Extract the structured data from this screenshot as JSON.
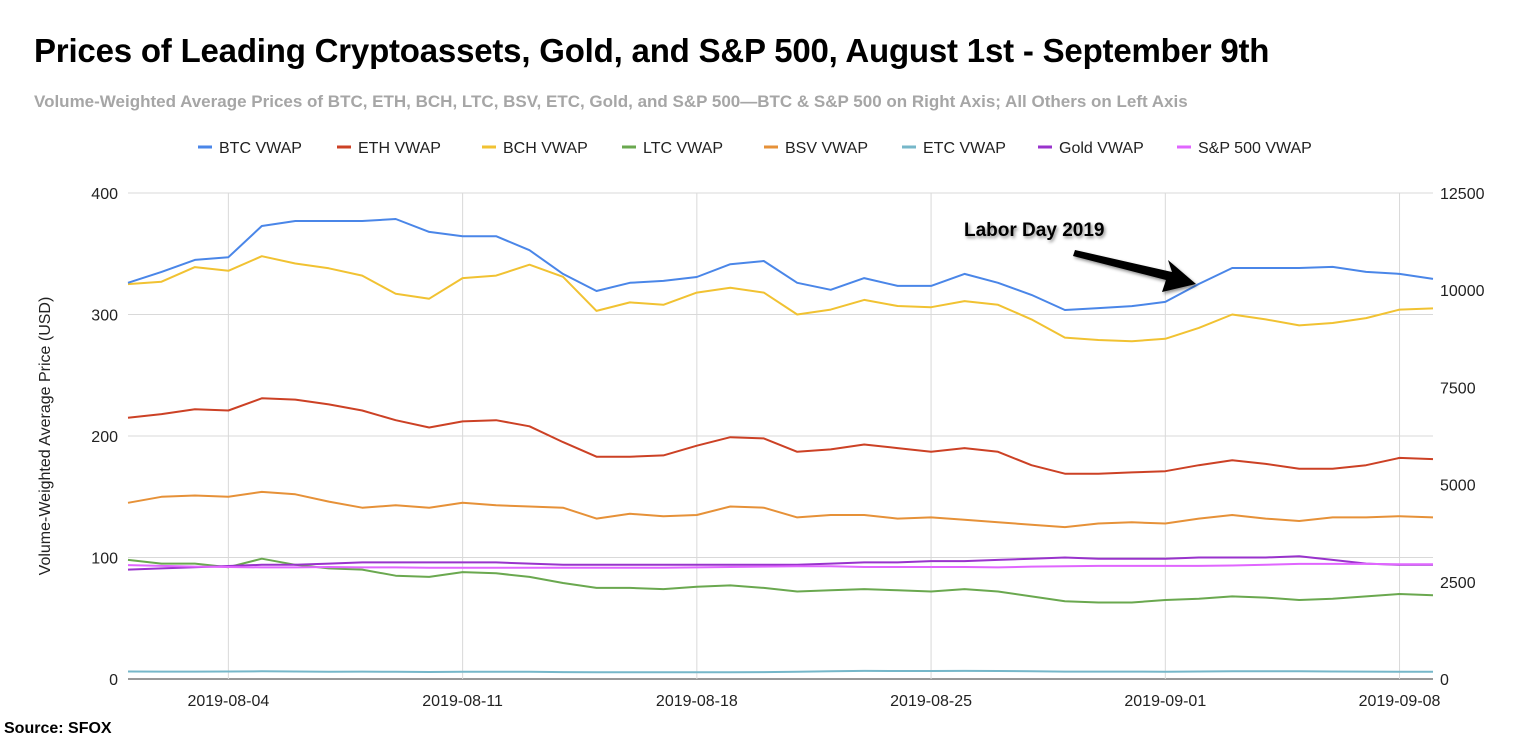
{
  "chart_data": {
    "type": "line",
    "title": "Prices of Leading Cryptoassets, Gold, and S&P 500, August 1st - September 9th",
    "subtitle": "Volume-Weighted Average Prices of BTC, ETH, BCH, LTC, BSV, ETC, Gold, and S&P 500—BTC & S&P 500 on Right Axis; All Others on Left Axis",
    "ylabel": "Volume-Weighted Average Price (USD)",
    "xlabel": "",
    "source": "Source: SFOX",
    "x_start": "2019-08-01",
    "x_end": "2019-09-09",
    "x_ticks": [
      "2019-08-04",
      "2019-08-11",
      "2019-08-18",
      "2019-08-25",
      "2019-09-01",
      "2019-09-08"
    ],
    "ylim_left": [
      0,
      400
    ],
    "y_ticks_left": [
      "0",
      "100",
      "200",
      "300",
      "400"
    ],
    "ylim_right": [
      0,
      12500
    ],
    "y_ticks_right": [
      "0",
      "2500",
      "5000",
      "7500",
      "10000",
      "12500"
    ],
    "grid": true,
    "legend_position": "top",
    "annotation": {
      "text": "Labor Day 2019",
      "date": "2019-09-02"
    },
    "series": [
      {
        "name": "BTC VWAP",
        "axis": "right",
        "color": "#4a86e8",
        "values": [
          10190,
          10470,
          10780,
          10850,
          11650,
          11780,
          11780,
          11780,
          11830,
          11500,
          11390,
          11390,
          11030,
          10420,
          9980,
          10190,
          10240,
          10340,
          10670,
          10750,
          10190,
          10010,
          10310,
          10110,
          10110,
          10420,
          10190,
          9880,
          9490,
          9540,
          9590,
          9700,
          10160,
          10570,
          10570,
          10570,
          10600,
          10470,
          10420,
          10290
        ]
      },
      {
        "name": "ETH VWAP",
        "axis": "left",
        "color": "#cc4125",
        "values": [
          215,
          218,
          222,
          221,
          231,
          230,
          226,
          221,
          213,
          207,
          212,
          213,
          208,
          195,
          183,
          183,
          184,
          192,
          199,
          198,
          187,
          189,
          193,
          190,
          187,
          190,
          187,
          176,
          169,
          169,
          170,
          171,
          176,
          180,
          177,
          173,
          173,
          176,
          182,
          181
        ]
      },
      {
        "name": "BCH VWAP",
        "axis": "left",
        "color": "#f1c232",
        "values": [
          325,
          327,
          339,
          336,
          348,
          342,
          338,
          332,
          317,
          313,
          330,
          332,
          341,
          331,
          303,
          310,
          308,
          318,
          322,
          318,
          300,
          304,
          312,
          307,
          306,
          311,
          308,
          296,
          281,
          279,
          278,
          280,
          289,
          300,
          296,
          291,
          293,
          297,
          304,
          305
        ]
      },
      {
        "name": "LTC VWAP",
        "axis": "left",
        "color": "#6aa84f",
        "values": [
          98,
          95,
          95,
          92,
          99,
          94,
          91,
          90,
          85,
          84,
          88,
          87,
          84,
          79,
          75,
          75,
          74,
          76,
          77,
          75,
          72,
          73,
          74,
          73,
          72,
          74,
          72,
          68,
          64,
          63,
          63,
          65,
          66,
          68,
          67,
          65,
          66,
          68,
          70,
          69
        ]
      },
      {
        "name": "BSV VWAP",
        "axis": "left",
        "color": "#e69138",
        "values": [
          145,
          150,
          151,
          150,
          154,
          152,
          146,
          141,
          143,
          141,
          145,
          143,
          142,
          141,
          132,
          136,
          134,
          135,
          142,
          141,
          133,
          135,
          135,
          132,
          133,
          131,
          129,
          127,
          125,
          128,
          129,
          128,
          132,
          135,
          132,
          130,
          133,
          133,
          134,
          133
        ]
      },
      {
        "name": "ETC VWAP",
        "axis": "left",
        "color": "#76b7c9",
        "values": [
          6.2,
          6.1,
          6.1,
          6.2,
          6.3,
          6.2,
          6.0,
          6.1,
          5.9,
          5.8,
          5.9,
          5.9,
          6.0,
          5.7,
          5.5,
          5.5,
          5.5,
          5.6,
          5.6,
          5.7,
          6.0,
          6.4,
          6.7,
          6.6,
          6.6,
          6.7,
          6.6,
          6.3,
          6.1,
          6.1,
          6.1,
          6.0,
          6.2,
          6.4,
          6.3,
          6.3,
          6.2,
          6.1,
          6.0,
          6.0
        ]
      },
      {
        "name": "Gold VWAP",
        "axis": "left",
        "color": "#9933cc",
        "values": [
          90,
          91,
          92,
          93,
          94,
          94,
          95,
          96,
          96,
          96,
          96,
          96,
          95,
          94,
          94,
          94,
          94,
          94,
          94,
          94,
          94,
          95,
          96,
          96,
          97,
          97,
          98,
          99,
          100,
          99,
          99,
          99,
          100,
          100,
          100,
          101,
          98,
          95,
          94,
          94
        ]
      },
      {
        "name": "S&P 500 VWAP",
        "axis": "right",
        "color": "#e066ff",
        "values": [
          2930,
          2910,
          2890,
          2880,
          2870,
          2870,
          2880,
          2870,
          2870,
          2860,
          2860,
          2860,
          2860,
          2860,
          2860,
          2860,
          2860,
          2870,
          2880,
          2890,
          2900,
          2900,
          2880,
          2880,
          2880,
          2880,
          2870,
          2890,
          2900,
          2910,
          2910,
          2910,
          2910,
          2920,
          2940,
          2960,
          2960,
          2960,
          2950,
          2950
        ]
      }
    ]
  }
}
